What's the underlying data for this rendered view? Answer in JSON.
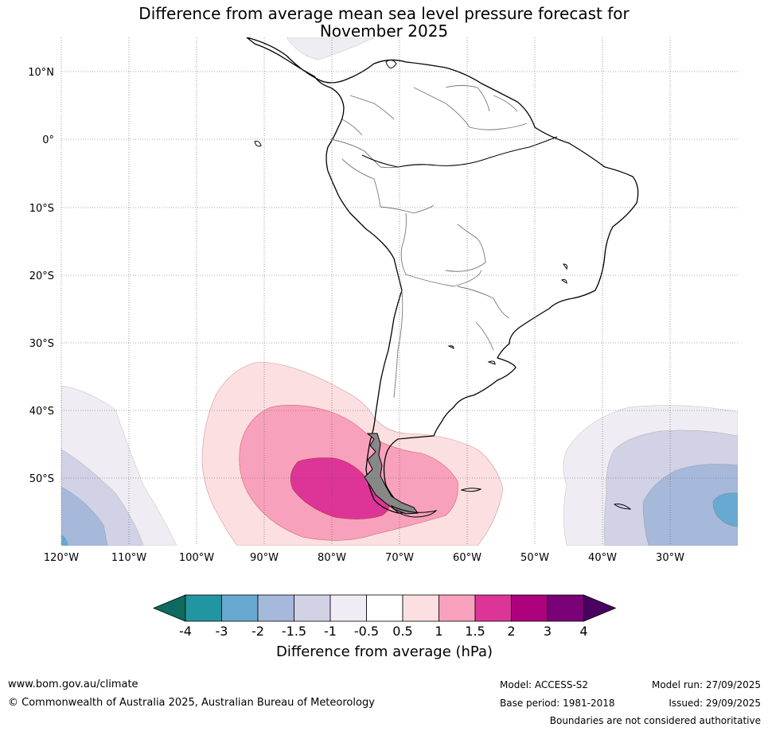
{
  "title": {
    "line1": "Difference from average mean sea level pressure forecast for",
    "line2": "November 2025"
  },
  "map": {
    "lat_labels": [
      "10°N",
      "0°",
      "10°S",
      "20°S",
      "30°S",
      "40°S",
      "50°S"
    ],
    "lon_labels": [
      "120°W",
      "110°W",
      "100°W",
      "90°W",
      "80°W",
      "70°W",
      "60°W",
      "50°W",
      "40°W",
      "30°W"
    ],
    "region": "South America"
  },
  "colorbar": {
    "ticks": [
      "-4",
      "-3",
      "-2",
      "-1.5",
      "-1",
      "-0.5",
      "0.5",
      "1",
      "1.5",
      "2",
      "3",
      "4"
    ],
    "colors": [
      "#0d6b5f",
      "#2296a0",
      "#67a9d1",
      "#a6b9db",
      "#d1d2e6",
      "#efedf3",
      "#ffffff",
      "#fcdfe0",
      "#f8a1bc",
      "#dd3597",
      "#ad017e",
      "#7a0177",
      "#4a005f"
    ],
    "label": "Difference from average (hPa)"
  },
  "footer": {
    "website": "www.bom.gov.au/climate",
    "copyright": "© Commonwealth of Australia 2025, Australian Bureau of Meteorology",
    "model": "Model: ACCESS-S2",
    "base_period": "Base period: 1981-2018",
    "model_run": "Model run: 27/09/2025",
    "issued": "Issued: 29/09/2025",
    "disclaimer": "Boundaries are not considered authoritative"
  }
}
